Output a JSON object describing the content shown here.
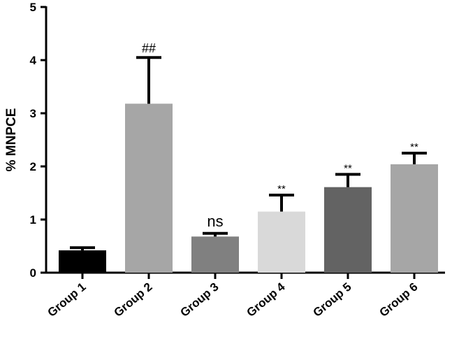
{
  "chart_data": {
    "type": "bar",
    "title": "",
    "xlabel": "",
    "ylabel": "% MNPCE",
    "ylim": [
      0,
      5
    ],
    "yticks": [
      "0",
      "1",
      "2",
      "3",
      "4",
      "5"
    ],
    "grid": false,
    "legend": "none",
    "categories": [
      "Group 1",
      "Group 2",
      "Group 3",
      "Group 4",
      "Group 5",
      "Group 6"
    ],
    "values": [
      0.42,
      3.18,
      0.68,
      1.15,
      1.61,
      2.04
    ],
    "errors": [
      0.05,
      0.87,
      0.06,
      0.31,
      0.24,
      0.21
    ],
    "annotations": [
      "",
      "##",
      "ns",
      "**",
      "**",
      "**"
    ],
    "colors": [
      "#000000",
      "#a6a6a6",
      "#808080",
      "#d9d9d9",
      "#636363",
      "#a6a6a6"
    ]
  }
}
